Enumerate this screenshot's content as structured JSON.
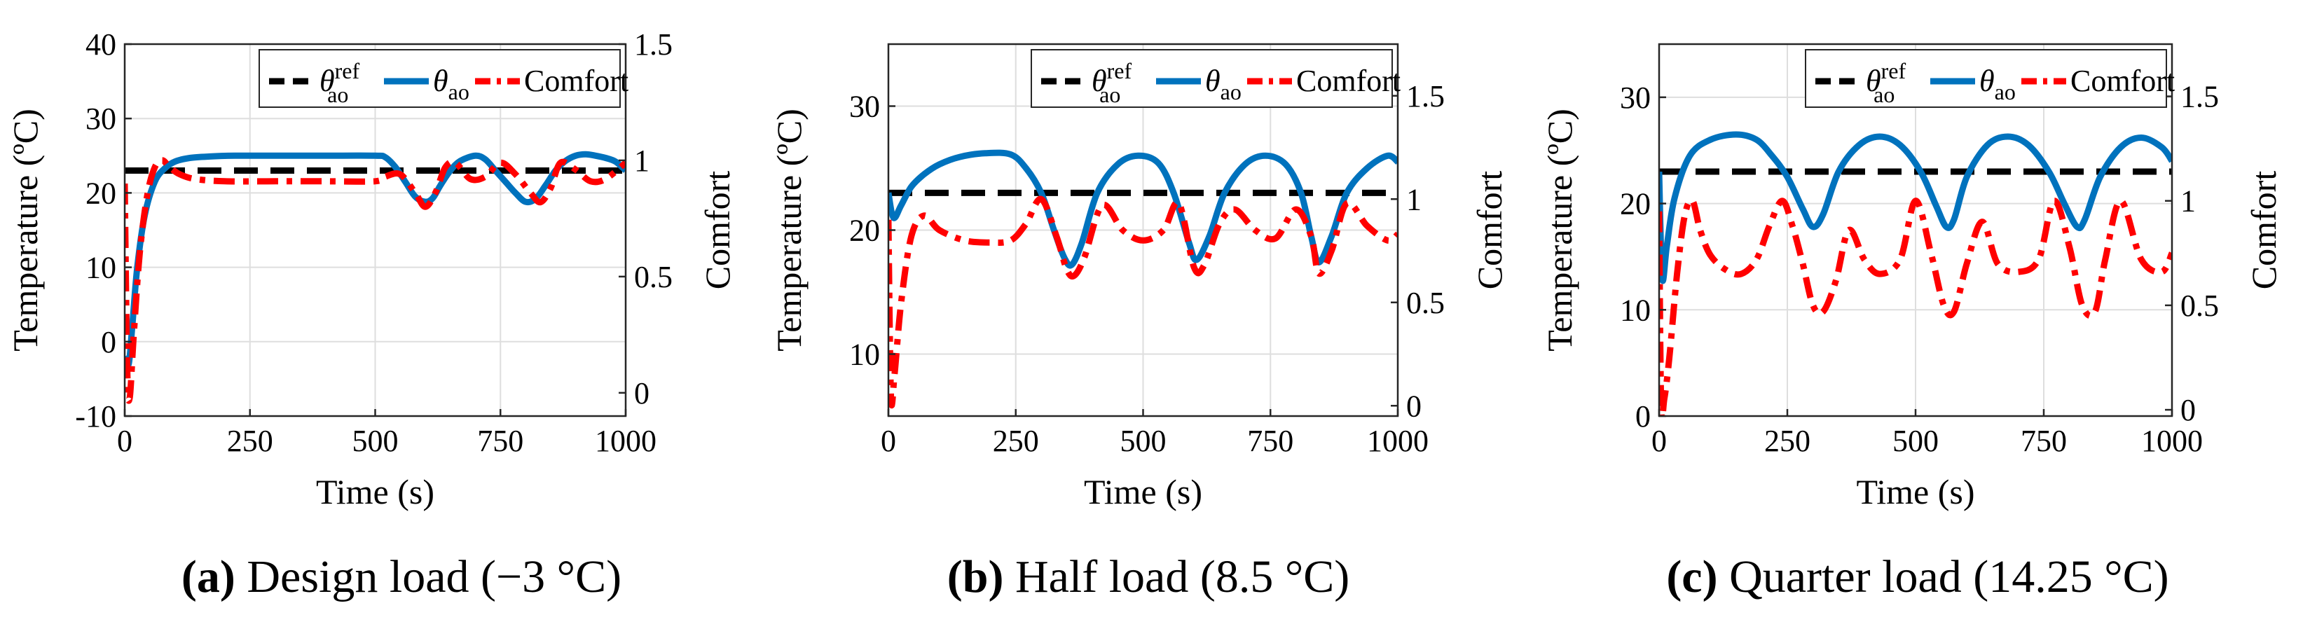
{
  "colors": {
    "reference": "#000000",
    "temperature": "#0072BD",
    "comfort": "#FF0000",
    "grid": "#DEDEDE"
  },
  "chart_data": [
    {
      "id": "a",
      "type": "line",
      "caption_tag": "a",
      "caption_text": "Design load (−3 °C)",
      "xlabel": "Time (s)",
      "ylabel": "Temperature (ºC)",
      "y2label": "Comfort",
      "xlim": [
        0,
        1000
      ],
      "ylim": [
        -10,
        40
      ],
      "y2lim": [
        -0.1,
        1.5
      ],
      "xticks": [
        0,
        250,
        500,
        750,
        1000
      ],
      "xtick_labels": [
        "0",
        "250",
        "500",
        "750",
        "1000"
      ],
      "yticks": [
        -10,
        0,
        10,
        20,
        30,
        40
      ],
      "ytick_labels": [
        "-10",
        "0",
        "10",
        "20",
        "30",
        "40"
      ],
      "y2ticks": [
        0,
        0.5,
        1,
        1.5
      ],
      "y2tick_labels": [
        "0",
        "0.5",
        "1",
        "1.5"
      ],
      "grid": true,
      "legend_position": "top-right",
      "legend": {
        "reference": "θ",
        "reference_sup": "ref",
        "reference_sub": "ao",
        "temperature": "θ",
        "temperature_sub": "ao",
        "comfort": "Comfort"
      },
      "series": [
        {
          "key": "reference",
          "axis": "left",
          "style": "dashed",
          "x": [
            0,
            1000
          ],
          "y": [
            23,
            23
          ]
        },
        {
          "key": "temperature",
          "axis": "left",
          "style": "solid",
          "x": [
            0,
            8,
            15,
            25,
            40,
            60,
            80,
            100,
            130,
            170,
            220,
            300,
            400,
            500,
            520,
            540,
            560,
            580,
            600,
            615,
            630,
            650,
            670,
            700,
            720,
            740,
            760,
            780,
            800,
            820,
            840,
            860,
            880,
            900,
            920,
            940,
            960,
            980,
            1000
          ],
          "y": [
            -2,
            -3,
            2,
            10,
            17,
            21.5,
            23.3,
            24.2,
            24.7,
            24.9,
            25,
            25,
            25,
            25,
            24.8,
            23.5,
            21.5,
            19.5,
            18.8,
            19.3,
            21,
            23,
            24.3,
            25,
            24.5,
            23,
            21.5,
            20,
            18.8,
            19.2,
            21,
            23,
            24.3,
            25,
            25.2,
            25,
            24.7,
            24.2,
            23
          ]
        },
        {
          "key": "comfort",
          "axis": "right",
          "style": "dashdot",
          "x": [
            0,
            5,
            10,
            18,
            30,
            45,
            60,
            75,
            90,
            110,
            140,
            200,
            300,
            400,
            500,
            520,
            550,
            580,
            600,
            620,
            640,
            660,
            690,
            720,
            750,
            780,
            810,
            830,
            850,
            870,
            900,
            930,
            960,
            1000
          ],
          "y": [
            0.9,
            0.1,
            -0.02,
            0.25,
            0.6,
            0.85,
            0.97,
            1.0,
            0.97,
            0.94,
            0.92,
            0.91,
            0.91,
            0.91,
            0.91,
            0.93,
            0.94,
            0.86,
            0.8,
            0.86,
            0.97,
            0.99,
            0.92,
            0.93,
            0.99,
            0.94,
            0.86,
            0.82,
            0.88,
            0.99,
            0.96,
            0.91,
            0.92,
            0.99
          ]
        }
      ]
    },
    {
      "id": "b",
      "type": "line",
      "caption_tag": "b",
      "caption_text": "Half load (8.5 °C)",
      "xlabel": "Time (s)",
      "ylabel": "Temperature (ºC)",
      "y2label": "Comfort",
      "xlim": [
        0,
        1000
      ],
      "ylim": [
        5,
        35
      ],
      "y2lim": [
        -0.05,
        1.75
      ],
      "xticks": [
        0,
        250,
        500,
        750,
        1000
      ],
      "xtick_labels": [
        "0",
        "250",
        "500",
        "750",
        "1000"
      ],
      "yticks": [
        10,
        20,
        30
      ],
      "ytick_labels": [
        "10",
        "20",
        "30"
      ],
      "y2ticks": [
        0,
        0.5,
        1,
        1.5
      ],
      "y2tick_labels": [
        "0",
        "0.5",
        "1",
        "1.5"
      ],
      "grid": true,
      "legend_position": "top-right",
      "legend": {
        "reference": "θ",
        "reference_sup": "ref",
        "reference_sub": "ao",
        "temperature": "θ",
        "temperature_sub": "ao",
        "comfort": "Comfort"
      },
      "series": [
        {
          "key": "reference",
          "axis": "left",
          "style": "dashed",
          "x": [
            0,
            1000
          ],
          "y": [
            23,
            23
          ]
        },
        {
          "key": "temperature",
          "axis": "left",
          "style": "solid",
          "x": [
            0,
            10,
            25,
            45,
            70,
            100,
            140,
            190,
            240,
            270,
            300,
            325,
            345,
            360,
            380,
            410,
            450,
            490,
            530,
            560,
            590,
            605,
            630,
            660,
            700,
            740,
            780,
            810,
            830,
            845,
            870,
            900,
            940,
            980,
            1000
          ],
          "y": [
            23,
            21,
            22,
            23.5,
            24.5,
            25.3,
            25.9,
            26.2,
            26.1,
            25,
            23,
            20,
            17.8,
            17.2,
            19,
            23,
            25.3,
            26,
            25.4,
            23,
            19,
            17.6,
            19.5,
            23,
            25.3,
            26,
            25.3,
            23,
            19.5,
            17.4,
            19.5,
            23,
            25,
            26,
            25.5
          ]
        },
        {
          "key": "comfort",
          "axis": "right",
          "style": "dashdot",
          "x": [
            0,
            5,
            12,
            25,
            45,
            70,
            100,
            150,
            200,
            240,
            270,
            300,
            330,
            350,
            365,
            385,
            420,
            460,
            500,
            540,
            570,
            600,
            620,
            650,
            680,
            720,
            760,
            800,
            830,
            845,
            870,
            900,
            940,
            980,
            1000
          ],
          "y": [
            0.9,
            0.05,
            0.15,
            0.5,
            0.82,
            0.92,
            0.85,
            0.8,
            0.79,
            0.8,
            0.88,
            1.0,
            0.82,
            0.66,
            0.63,
            0.72,
            0.97,
            0.85,
            0.8,
            0.85,
            0.98,
            0.67,
            0.68,
            0.88,
            0.95,
            0.85,
            0.81,
            0.95,
            0.82,
            0.64,
            0.75,
            0.98,
            0.87,
            0.8,
            0.83
          ]
        }
      ]
    },
    {
      "id": "c",
      "type": "line",
      "caption_tag": "c",
      "caption_text": "Quarter load (14.25 °C)",
      "xlabel": "Time (s)",
      "ylabel": "Temperature (ºC)",
      "y2label": "Comfort",
      "xlim": [
        0,
        1000
      ],
      "ylim": [
        0,
        35
      ],
      "y2lim": [
        -0.03,
        1.75
      ],
      "xticks": [
        0,
        250,
        500,
        750,
        1000
      ],
      "xtick_labels": [
        "0",
        "250",
        "500",
        "750",
        "1000"
      ],
      "yticks": [
        0,
        10,
        20,
        30
      ],
      "ytick_labels": [
        "0",
        "10",
        "20",
        "30"
      ],
      "y2ticks": [
        0,
        0.5,
        1,
        1.5
      ],
      "y2tick_labels": [
        "0",
        "0.5",
        "1",
        "1.5"
      ],
      "grid": true,
      "legend_position": "top-right",
      "legend": {
        "reference": "θ",
        "reference_sup": "ref",
        "reference_sub": "ao",
        "temperature": "θ",
        "temperature_sub": "ao",
        "comfort": "Comfort"
      },
      "series": [
        {
          "key": "reference",
          "axis": "left",
          "style": "dashed",
          "x": [
            0,
            1000
          ],
          "y": [
            23,
            23
          ]
        },
        {
          "key": "temperature",
          "axis": "left",
          "style": "solid",
          "x": [
            0,
            6,
            15,
            30,
            60,
            100,
            150,
            190,
            220,
            250,
            280,
            300,
            320,
            350,
            390,
            430,
            470,
            510,
            540,
            560,
            575,
            600,
            640,
            680,
            720,
            760,
            790,
            815,
            830,
            860,
            900,
            940,
            980,
            1000
          ],
          "y": [
            23,
            13,
            16,
            20.5,
            24.5,
            26,
            26.5,
            26,
            24.5,
            22.5,
            19.5,
            17.8,
            19,
            23,
            25.5,
            26.3,
            25.5,
            23,
            19.8,
            17.8,
            18.5,
            22.5,
            25.5,
            26.3,
            25.5,
            23,
            20,
            17.8,
            18.5,
            22.5,
            25.3,
            26.2,
            25.3,
            24
          ]
        },
        {
          "key": "comfort",
          "axis": "right",
          "style": "dashdot",
          "x": [
            0,
            4,
            10,
            20,
            35,
            50,
            65,
            80,
            100,
            130,
            160,
            190,
            215,
            240,
            260,
            280,
            300,
            320,
            345,
            370,
            400,
            430,
            470,
            500,
            530,
            555,
            575,
            600,
            630,
            660,
            700,
            740,
            770,
            800,
            825,
            850,
            870,
            900,
            940,
            980,
            1000
          ],
          "y": [
            0.95,
            0.02,
            0.05,
            0.25,
            0.65,
            0.93,
            1.0,
            0.86,
            0.74,
            0.67,
            0.65,
            0.72,
            0.88,
            1.0,
            0.88,
            0.7,
            0.5,
            0.47,
            0.62,
            0.86,
            0.72,
            0.65,
            0.72,
            1.0,
            0.75,
            0.5,
            0.47,
            0.7,
            0.9,
            0.7,
            0.66,
            0.72,
            1.0,
            0.78,
            0.5,
            0.47,
            0.72,
            1.0,
            0.72,
            0.66,
            0.75
          ]
        }
      ]
    }
  ]
}
